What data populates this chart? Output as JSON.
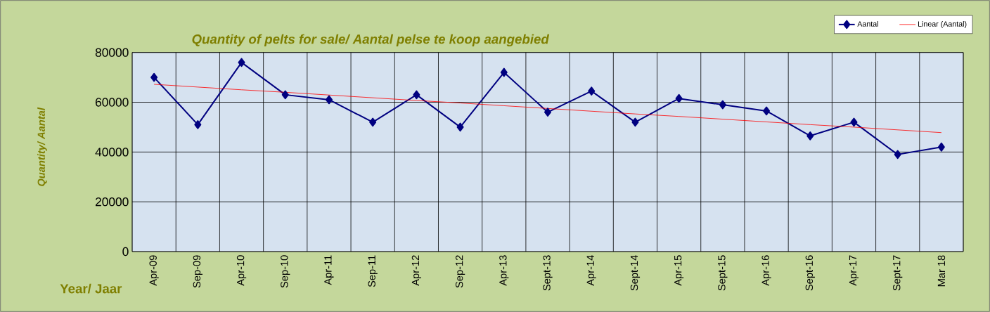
{
  "chart_data": {
    "type": "line",
    "title": "Quantity of pelts for sale/ Aantal pelse te koop aangebied",
    "xlabel": "Year/ Jaar",
    "ylabel": "Quantity/ Aantal",
    "categories": [
      "Apr-09",
      "Sep-09",
      "Apr-10",
      "Sep-10",
      "Apr-11",
      "Sep-11",
      "Apr-12",
      "Sep-12",
      "Apr-13",
      "Sept-13",
      "Apr-14",
      "Sept-14",
      "Apr-15",
      "Sept-15",
      "Apr-16",
      "Sept-16",
      "Apr-17",
      "Sept-17",
      "Mar 18"
    ],
    "series": [
      {
        "name": "Aantal",
        "color": "#000080",
        "marker": "diamond",
        "values": [
          70000,
          51000,
          76000,
          63000,
          61000,
          52000,
          63000,
          50000,
          72000,
          56000,
          64500,
          52000,
          61500,
          59000,
          56500,
          46500,
          52000,
          39000,
          42000
        ]
      },
      {
        "name": "Linear (Aantal)",
        "color": "#ff0000",
        "marker": "none",
        "values": [
          67200,
          66100,
          65000,
          64000,
          62900,
          61800,
          60700,
          59700,
          58600,
          57500,
          56400,
          55300,
          54300,
          53200,
          52100,
          51000,
          50000,
          48900,
          47800
        ]
      }
    ],
    "ylim": [
      0,
      80000
    ],
    "yticks": [
      0,
      20000,
      40000,
      60000,
      80000
    ],
    "grid": true,
    "legend": "top right"
  }
}
